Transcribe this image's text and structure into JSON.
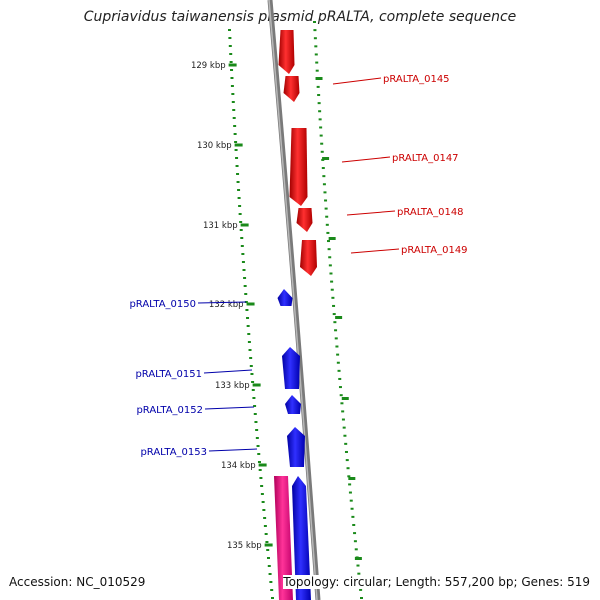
{
  "title": "Cupriavidus taiwanensis plasmid pRALTA, complete sequence",
  "footer": {
    "accession": "Accession: NC_010529",
    "summary": "Topology: circular; Length: 557,200 bp; Genes: 519"
  },
  "colors": {
    "backbone": "#7a7a7a",
    "forward": "#ee1111",
    "reverse": "#1111ee",
    "pink": "#ee1177",
    "tick": "#1a8a1a",
    "label_forward": "#cc0000",
    "label_reverse": "#0000aa"
  },
  "ticks": [
    "129 kbp",
    "130 kbp",
    "131 kbp",
    "132 kbp",
    "133 kbp",
    "134 kbp",
    "135 kbp"
  ],
  "genes_forward": [
    "pRALTA_0145",
    "pRALTA_0147",
    "pRALTA_0148",
    "pRALTA_0149"
  ],
  "genes_reverse": [
    "pRALTA_0150",
    "pRALTA_0151",
    "pRALTA_0152",
    "pRALTA_0153"
  ]
}
